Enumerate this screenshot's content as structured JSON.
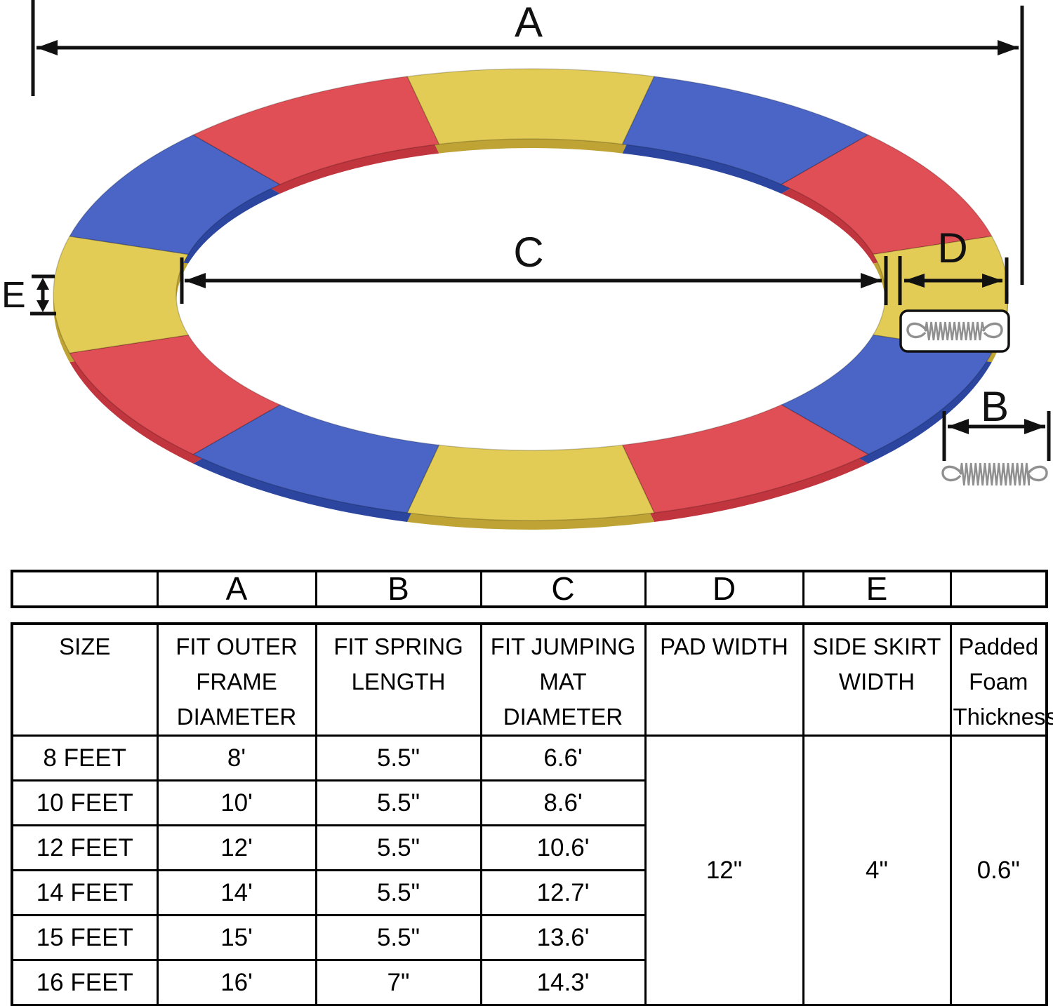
{
  "diagram": {
    "labels": {
      "a": "A",
      "b": "B",
      "c": "C",
      "d": "D",
      "e": "E"
    },
    "colors": {
      "yellow": "#e2cc55",
      "red": "#e04f55",
      "blue": "#4a65c5",
      "yellow_dark": "#bfa435",
      "red_dark": "#c1353e",
      "blue_dark": "#2c46a0",
      "line": "#111111",
      "spring": "#909090"
    },
    "segment_sequence": [
      "yellow",
      "blue",
      "red",
      "yellow",
      "blue",
      "red",
      "yellow",
      "blue",
      "red",
      "yellow",
      "blue",
      "red"
    ]
  },
  "table": {
    "dim_headers": [
      "",
      "A",
      "B",
      "C",
      "D",
      "E",
      ""
    ],
    "col_headers": [
      "SIZE",
      "FIT OUTER\nFRAME\nDIAMETER",
      "FIT SPRING\nLENGTH",
      "FIT JUMPING\nMAT\nDIAMETER",
      "PAD WIDTH",
      "SIDE SKIRT\nWIDTH",
      "Padded\nFoam\nThickness"
    ],
    "rows": [
      {
        "size": "8 FEET",
        "outer_frame": "8'",
        "spring_length": "5.5\"",
        "mat_diameter": "6.6'"
      },
      {
        "size": "10 FEET",
        "outer_frame": "10'",
        "spring_length": "5.5\"",
        "mat_diameter": "8.6'"
      },
      {
        "size": "12 FEET",
        "outer_frame": "12'",
        "spring_length": "5.5\"",
        "mat_diameter": "10.6'"
      },
      {
        "size": "14 FEET",
        "outer_frame": "14'",
        "spring_length": "5.5\"",
        "mat_diameter": "12.7'"
      },
      {
        "size": "15 FEET",
        "outer_frame": "15'",
        "spring_length": "5.5\"",
        "mat_diameter": "13.6'"
      },
      {
        "size": "16 FEET",
        "outer_frame": "16'",
        "spring_length": "7\"",
        "mat_diameter": "14.3'"
      }
    ],
    "merged": {
      "pad_width": "12\"",
      "side_skirt_width": "4\"",
      "foam_thickness": "0.6\""
    }
  }
}
